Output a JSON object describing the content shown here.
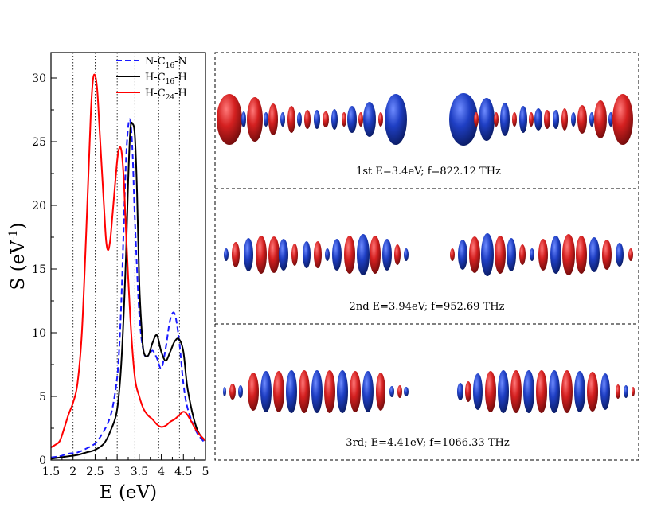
{
  "chart_data": {
    "type": "line",
    "xlabel": "E (eV)",
    "ylabel": "S (eV-1)",
    "ylabel_parts": {
      "main": "S (eV",
      "sup": "-1",
      "end": ")"
    },
    "xlim": [
      1.5,
      5.0
    ],
    "ylim": [
      0,
      32
    ],
    "xticks": [
      1.5,
      2,
      2.5,
      3,
      3.5,
      4,
      4.5,
      5
    ],
    "xtick_labels": [
      "1.5",
      "2",
      "2.5",
      "3",
      "3.5",
      "4",
      "4.5",
      "5"
    ],
    "yticks": [
      0,
      5,
      10,
      15,
      20,
      25,
      30
    ],
    "ytick_labels": [
      "0",
      "5",
      "10",
      "15",
      "20",
      "25",
      "30"
    ],
    "vertical_guides": [
      2.0,
      2.5,
      3.0,
      3.4,
      3.94,
      4.41
    ],
    "legend": [
      {
        "series": "N-C16-N",
        "parts": {
          "a": "N-C",
          "sub": "16",
          "b": "-N"
        }
      },
      {
        "series": "H-C16-H",
        "parts": {
          "a": "H-C",
          "sub": "16",
          "b": "-H"
        }
      },
      {
        "series": "H-C24-H",
        "parts": {
          "a": "H-C",
          "sub": "24",
          "b": "-H"
        }
      }
    ],
    "series": [
      {
        "name": "N-C16-N",
        "color": "#1a1aff",
        "dashed": true,
        "x": [
          1.5,
          1.7,
          1.9,
          2.1,
          2.3,
          2.5,
          2.65,
          2.8,
          2.9,
          3.0,
          3.05,
          3.1,
          3.15,
          3.2,
          3.25,
          3.3,
          3.35,
          3.4,
          3.5,
          3.6,
          3.7,
          3.8,
          3.9,
          4.0,
          4.1,
          4.2,
          4.3,
          4.4,
          4.5,
          4.6,
          4.8,
          5.0
        ],
        "y": [
          0.2,
          0.3,
          0.5,
          0.6,
          0.9,
          1.3,
          2.0,
          3.0,
          4.2,
          6.5,
          9.0,
          13.0,
          18.5,
          23.5,
          26.2,
          26.6,
          24.0,
          19.0,
          11.5,
          8.5,
          8.2,
          8.6,
          8.0,
          7.2,
          8.8,
          11.0,
          11.5,
          9.5,
          6.0,
          4.0,
          2.2,
          1.3
        ]
      },
      {
        "name": "H-C16-H",
        "color": "#000000",
        "dashed": false,
        "x": [
          1.5,
          1.7,
          1.9,
          2.1,
          2.3,
          2.5,
          2.7,
          2.85,
          3.0,
          3.1,
          3.2,
          3.25,
          3.3,
          3.35,
          3.4,
          3.45,
          3.5,
          3.55,
          3.6,
          3.7,
          3.8,
          3.9,
          4.0,
          4.1,
          4.2,
          4.3,
          4.4,
          4.5,
          4.6,
          4.8,
          5.0
        ],
        "y": [
          0.1,
          0.2,
          0.3,
          0.4,
          0.6,
          0.8,
          1.3,
          2.3,
          4.0,
          8.0,
          16.0,
          22.0,
          26.0,
          26.4,
          25.5,
          21.0,
          14.0,
          10.5,
          8.5,
          8.2,
          9.2,
          9.8,
          8.5,
          7.8,
          8.5,
          9.3,
          9.5,
          8.5,
          5.5,
          2.5,
          1.5
        ]
      },
      {
        "name": "H-C24-H",
        "color": "#ff0000",
        "dashed": false,
        "x": [
          1.5,
          1.6,
          1.7,
          1.8,
          1.9,
          2.0,
          2.1,
          2.2,
          2.3,
          2.4,
          2.45,
          2.5,
          2.55,
          2.6,
          2.7,
          2.75,
          2.8,
          2.85,
          2.9,
          3.0,
          3.05,
          3.1,
          3.15,
          3.2,
          3.3,
          3.4,
          3.5,
          3.6,
          3.7,
          3.8,
          3.9,
          4.0,
          4.1,
          4.2,
          4.3,
          4.4,
          4.5,
          4.6,
          4.8,
          5.0
        ],
        "y": [
          1.0,
          1.2,
          1.5,
          2.5,
          3.6,
          4.5,
          6.0,
          10.0,
          18.0,
          27.0,
          29.8,
          30.2,
          29.0,
          26.0,
          20.0,
          17.2,
          16.5,
          17.5,
          19.5,
          23.5,
          24.5,
          24.2,
          22.0,
          18.0,
          11.0,
          6.5,
          5.0,
          4.0,
          3.5,
          3.2,
          2.8,
          2.6,
          2.7,
          3.0,
          3.2,
          3.5,
          3.8,
          3.5,
          2.3,
          1.5
        ]
      }
    ]
  },
  "panels": [
    {
      "caption": "1st  E=3.4eV;  f=822.12 THz"
    },
    {
      "caption": "2nd E=3.94eV; f=952.69 THz"
    },
    {
      "caption": "3rd; E=4.41eV; f=1066.33 THz"
    }
  ],
  "colors": {
    "red": "#d42020",
    "blue": "#1f3fc4",
    "dark_red": "#7a0d0d",
    "dark_blue": "#0d1e66"
  }
}
